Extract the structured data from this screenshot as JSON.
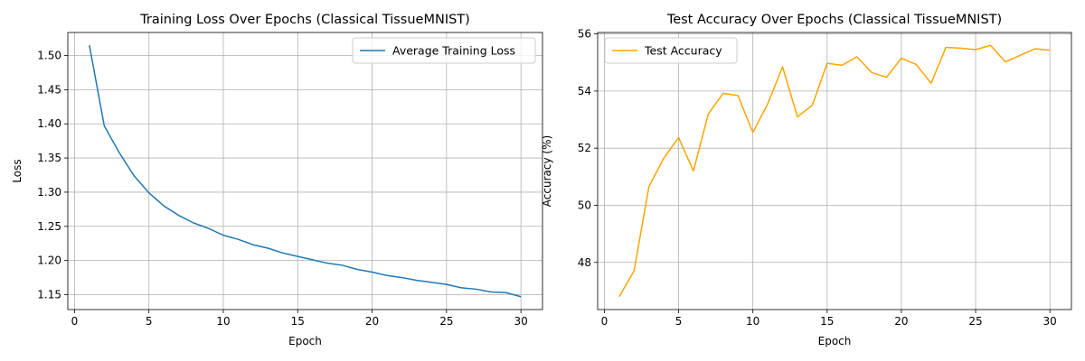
{
  "chart_data": [
    {
      "type": "line",
      "title": "Training Loss Over Epochs (Classical TissueMNIST)",
      "xlabel": "Epoch",
      "ylabel": "Loss",
      "xlim": [
        -0.45,
        31.45
      ],
      "ylim": [
        1.1282,
        1.5337
      ],
      "xticks": [
        0,
        5,
        10,
        15,
        20,
        25,
        30
      ],
      "yticks": [
        1.15,
        1.2,
        1.25,
        1.3,
        1.35,
        1.4,
        1.45,
        1.5
      ],
      "ytick_labels": [
        "1.15",
        "1.20",
        "1.25",
        "1.30",
        "1.35",
        "1.40",
        "1.45",
        "1.50"
      ],
      "grid": true,
      "legend_position": "top-right",
      "x": [
        1,
        2,
        3,
        4,
        5,
        6,
        7,
        8,
        9,
        10,
        11,
        12,
        13,
        14,
        15,
        16,
        17,
        18,
        19,
        20,
        21,
        22,
        23,
        24,
        25,
        26,
        27,
        28,
        29,
        30
      ],
      "series": [
        {
          "name": "Average Training Loss",
          "color": "#1f77b4",
          "values": [
            1.515,
            1.397,
            1.358,
            1.324,
            1.299,
            1.28,
            1.266,
            1.255,
            1.247,
            1.237,
            1.231,
            1.223,
            1.218,
            1.211,
            1.206,
            1.201,
            1.196,
            1.193,
            1.187,
            1.183,
            1.178,
            1.175,
            1.171,
            1.168,
            1.165,
            1.16,
            1.158,
            1.154,
            1.153,
            1.147
          ]
        }
      ]
    },
    {
      "type": "line",
      "title": "Test Accuracy Over Epochs (Classical TissueMNIST)",
      "xlabel": "Epoch",
      "ylabel": "Accuracy (%)",
      "xlim": [
        -0.45,
        31.45
      ],
      "ylim": [
        46.35,
        56.05
      ],
      "xticks": [
        0,
        5,
        10,
        15,
        20,
        25,
        30
      ],
      "yticks": [
        48,
        50,
        52,
        54,
        56
      ],
      "ytick_labels": [
        "48",
        "50",
        "52",
        "54",
        "56"
      ],
      "grid": true,
      "legend_position": "top-left",
      "x": [
        1,
        2,
        3,
        4,
        5,
        6,
        7,
        8,
        9,
        10,
        11,
        12,
        13,
        14,
        15,
        16,
        17,
        18,
        19,
        20,
        21,
        22,
        23,
        24,
        25,
        26,
        27,
        28,
        29,
        30
      ],
      "series": [
        {
          "name": "Test Accuracy",
          "color": "#ffa500",
          "values": [
            46.8,
            47.7,
            50.65,
            51.65,
            52.37,
            51.2,
            53.2,
            53.92,
            53.84,
            52.55,
            53.55,
            54.85,
            53.1,
            53.5,
            54.97,
            54.9,
            55.2,
            54.65,
            54.48,
            55.15,
            54.93,
            54.27,
            55.53,
            55.5,
            55.45,
            55.6,
            55.02,
            55.25,
            55.48,
            55.43
          ]
        }
      ]
    }
  ]
}
